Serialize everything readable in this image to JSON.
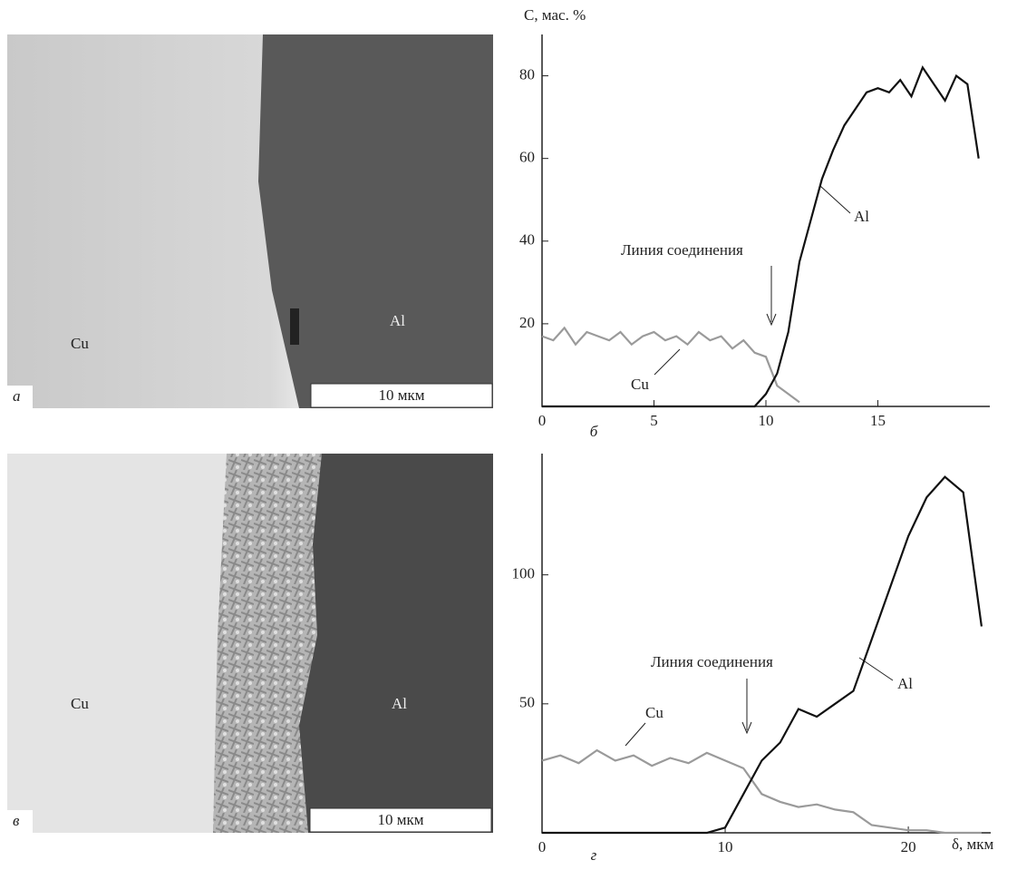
{
  "micrographs": [
    {
      "panel": "а",
      "left_label": "Cu",
      "right_label": "Al",
      "scale_bar": "10 мкм"
    },
    {
      "panel": "в",
      "left_label": "Cu",
      "right_label": "Al",
      "scale_bar": "10 мкм"
    }
  ],
  "chart_data": [
    {
      "type": "line",
      "title": "б",
      "ylabel": "C, мас. %",
      "xlim": [
        0,
        20
      ],
      "ylim": [
        0,
        90
      ],
      "xticks": [
        0,
        5,
        10,
        15
      ],
      "yticks": [
        20,
        40,
        60,
        80
      ],
      "annotations": [
        "Линия соединения",
        "Al",
        "Cu"
      ],
      "x": [
        0,
        0.5,
        1,
        1.5,
        2,
        2.5,
        3,
        3.5,
        4,
        4.5,
        5,
        5.5,
        6,
        6.5,
        7,
        7.5,
        8,
        8.5,
        9,
        9.5,
        10,
        10.5,
        11,
        11.5,
        12,
        12.5,
        13,
        13.5,
        14,
        14.5,
        15,
        15.5,
        16,
        16.5,
        17,
        17.5,
        18,
        18.5,
        19,
        19.5
      ],
      "series": [
        {
          "name": "Cu",
          "color": "#9a9a9a",
          "values": [
            17,
            16,
            19,
            15,
            18,
            17,
            16,
            18,
            15,
            17,
            18,
            16,
            17,
            15,
            18,
            16,
            17,
            14,
            16,
            13,
            12,
            5,
            3,
            1,
            null,
            null,
            null,
            null,
            null,
            null,
            null,
            null,
            null,
            null,
            null,
            null,
            null,
            null,
            null,
            null
          ]
        },
        {
          "name": "Al",
          "color": "#111111",
          "values": [
            0,
            0,
            0,
            0,
            0,
            0,
            0,
            0,
            0,
            0,
            0,
            0,
            0,
            0,
            0,
            0,
            0,
            0,
            0,
            0,
            3,
            8,
            18,
            35,
            45,
            55,
            62,
            68,
            72,
            76,
            77,
            76,
            79,
            75,
            82,
            78,
            74,
            80,
            78,
            60
          ]
        }
      ]
    },
    {
      "type": "line",
      "title": "г",
      "xlabel": "δ, мкм",
      "xlim": [
        0,
        24.5
      ],
      "ylim": [
        0,
        147
      ],
      "xticks": [
        0,
        10,
        20
      ],
      "yticks": [
        50,
        100
      ],
      "annotations": [
        "Линия соединения",
        "Al",
        "Cu"
      ],
      "x": [
        0,
        1,
        2,
        3,
        4,
        5,
        6,
        7,
        8,
        9,
        10,
        11,
        12,
        13,
        14,
        15,
        16,
        17,
        18,
        19,
        20,
        21,
        22,
        23,
        24
      ],
      "series": [
        {
          "name": "Cu",
          "color": "#9a9a9a",
          "values": [
            28,
            30,
            27,
            32,
            28,
            30,
            26,
            29,
            27,
            31,
            28,
            25,
            15,
            12,
            10,
            11,
            9,
            8,
            3,
            2,
            1,
            1,
            0,
            0,
            0
          ]
        },
        {
          "name": "Al",
          "color": "#111111",
          "values": [
            0,
            0,
            0,
            0,
            0,
            0,
            0,
            0,
            0,
            0,
            2,
            15,
            28,
            35,
            48,
            45,
            50,
            55,
            75,
            95,
            115,
            130,
            138,
            132,
            80
          ]
        }
      ]
    }
  ]
}
